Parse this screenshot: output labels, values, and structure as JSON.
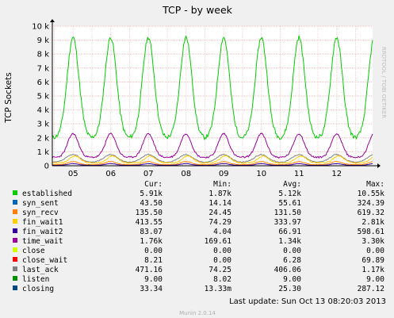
{
  "window": {
    "title": "TCP - by week",
    "side_label": "RRDTOOL / TOBI OETIKER",
    "footer": "Munin 2.0.14"
  },
  "chart_data": {
    "type": "line",
    "title": "TCP - by week",
    "ylabel": "TCP Sockets",
    "ylim": [
      0,
      10000
    ],
    "y_ticks": [
      0,
      1000,
      2000,
      3000,
      4000,
      5000,
      6000,
      7000,
      8000,
      9000,
      10000
    ],
    "y_tick_labels": [
      "0",
      "1 k",
      "2 k",
      "3 k",
      "4 k",
      "5 k",
      "6 k",
      "7 k",
      "8 k",
      "9 k",
      "10 k"
    ],
    "x_tick_labels": [
      "05",
      "06",
      "07",
      "08",
      "09",
      "10",
      "11",
      "12"
    ],
    "grid": true,
    "legend_columns": [
      "Cur:",
      "Min:",
      "Avg:",
      "Max:"
    ],
    "series": [
      {
        "name": "established",
        "color": "#00cc00",
        "values": [
          "5.91k",
          "1.87k",
          "5.12k",
          "10.55k"
        ]
      },
      {
        "name": "syn_sent",
        "color": "#0066b3",
        "values": [
          "43.50",
          "14.14",
          "55.61",
          "324.39"
        ]
      },
      {
        "name": "syn_recv",
        "color": "#ff8000",
        "values": [
          "135.50",
          "24.45",
          "131.50",
          "619.32"
        ]
      },
      {
        "name": "fin_wait1",
        "color": "#ffcc00",
        "values": [
          "413.55",
          "74.29",
          "333.97",
          "2.81k"
        ]
      },
      {
        "name": "fin_wait2",
        "color": "#330099",
        "values": [
          "83.07",
          "4.04",
          "66.91",
          "598.61"
        ]
      },
      {
        "name": "time_wait",
        "color": "#990099",
        "values": [
          "1.76k",
          "169.61",
          "1.34k",
          "3.30k"
        ]
      },
      {
        "name": "close",
        "color": "#ccff00",
        "values": [
          "0.00",
          "0.00",
          "0.00",
          "0.00"
        ]
      },
      {
        "name": "close_wait",
        "color": "#ff0000",
        "values": [
          "8.21",
          "0.00",
          "6.28",
          "69.89"
        ]
      },
      {
        "name": "last_ack",
        "color": "#808080",
        "values": [
          "471.16",
          "74.25",
          "406.06",
          "1.17k"
        ]
      },
      {
        "name": "listen",
        "color": "#008f00",
        "values": [
          "9.00",
          "8.02",
          "9.00",
          "9.00"
        ]
      },
      {
        "name": "closing",
        "color": "#00487d",
        "values": [
          "33.34",
          "13.33m",
          "25.30",
          "287.12"
        ]
      }
    ],
    "last_update": "Last update:  Sun Oct 13 08:20:03 2013"
  }
}
